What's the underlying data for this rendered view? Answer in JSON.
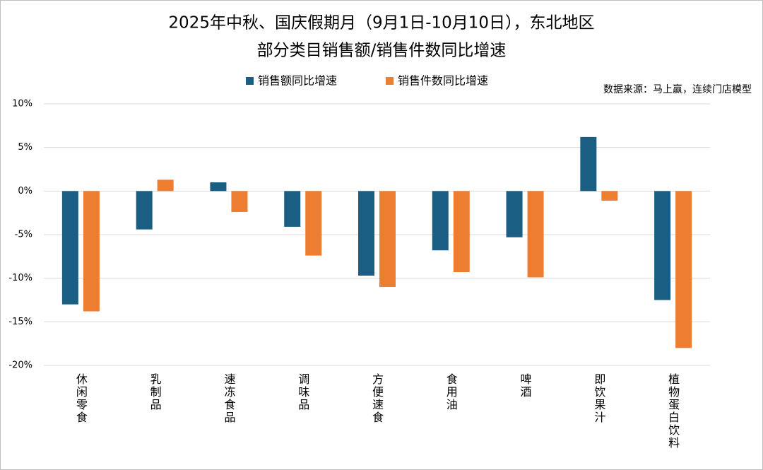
{
  "chart_data": {
    "type": "bar",
    "title": "2025年中秋、国庆假期月（9月1日-10月10日），东北地区",
    "subtitle": "部分类目销售额/销售件数同比增速",
    "source": "数据来源：马上赢，连续门店模型",
    "categories": [
      "休闲零食",
      "乳制品",
      "速冻食品",
      "调味品",
      "方便速食",
      "食用油",
      "啤酒",
      "即饮果汁",
      "植物蛋白饮料"
    ],
    "series": [
      {
        "name": "销售额同比增速",
        "color": "#1b5e83",
        "values": [
          -13.0,
          -4.4,
          1.0,
          -4.1,
          -9.7,
          -6.8,
          -5.3,
          6.2,
          -12.5
        ]
      },
      {
        "name": "销售件数同比增速",
        "color": "#ed7d31",
        "values": [
          -13.8,
          1.3,
          -2.4,
          -7.4,
          -11.0,
          -9.3,
          -9.9,
          -1.1,
          -18.0
        ]
      }
    ],
    "ylim": [
      -20,
      10
    ],
    "yticks": [
      {
        "value": -20,
        "label": "-20%"
      },
      {
        "value": -15,
        "label": "-15%"
      },
      {
        "value": -10,
        "label": "-10%"
      },
      {
        "value": -5,
        "label": "-5%"
      },
      {
        "value": 0,
        "label": "0%"
      },
      {
        "value": 5,
        "label": "5%"
      },
      {
        "value": 10,
        "label": "10%"
      }
    ],
    "grid": true
  }
}
